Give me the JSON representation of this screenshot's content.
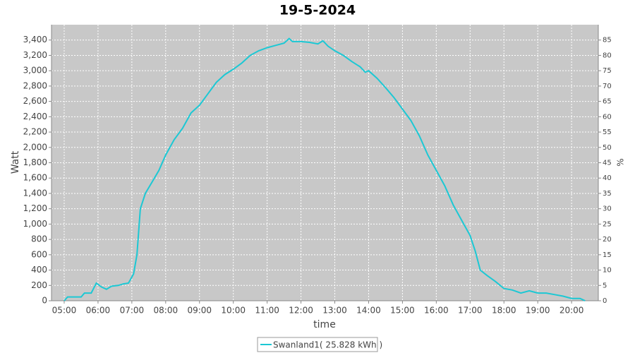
{
  "chart_data": {
    "type": "line",
    "title": "19-5-2024",
    "x_label": "time",
    "y_label": "Watt",
    "y2_label": "%",
    "x": [
      5.0,
      5.1,
      5.5,
      5.6,
      5.8,
      5.95,
      6.1,
      6.25,
      6.4,
      6.6,
      6.75,
      6.9,
      7.05,
      7.15,
      7.25,
      7.4,
      7.6,
      7.8,
      8.0,
      8.25,
      8.5,
      8.75,
      9.0,
      9.25,
      9.5,
      9.75,
      10.0,
      10.25,
      10.5,
      10.75,
      11.0,
      11.25,
      11.5,
      11.65,
      11.75,
      12.0,
      12.25,
      12.5,
      12.65,
      12.8,
      13.0,
      13.25,
      13.5,
      13.75,
      13.9,
      14.0,
      14.25,
      14.5,
      14.75,
      15.0,
      15.25,
      15.5,
      15.75,
      16.0,
      16.25,
      16.5,
      16.75,
      17.0,
      17.15,
      17.3,
      17.5,
      17.75,
      18.0,
      18.25,
      18.5,
      18.75,
      19.0,
      19.25,
      19.5,
      19.75,
      20.0,
      20.25,
      20.4
    ],
    "series": [
      {
        "name": "Swanland1( 25.828 kWh )",
        "color": "#1cc8d4",
        "values": [
          0,
          50,
          50,
          100,
          100,
          230,
          180,
          150,
          190,
          200,
          220,
          230,
          350,
          600,
          1200,
          1400,
          1550,
          1700,
          1900,
          2100,
          2250,
          2450,
          2550,
          2700,
          2850,
          2950,
          3020,
          3100,
          3200,
          3260,
          3300,
          3330,
          3360,
          3420,
          3380,
          3380,
          3370,
          3350,
          3390,
          3320,
          3260,
          3200,
          3120,
          3050,
          2980,
          3000,
          2900,
          2780,
          2650,
          2500,
          2350,
          2150,
          1900,
          1700,
          1500,
          1250,
          1050,
          850,
          650,
          400,
          330,
          250,
          160,
          140,
          100,
          130,
          100,
          100,
          80,
          60,
          30,
          30,
          0
        ]
      }
    ],
    "xlim": [
      4.625,
      20.79
    ],
    "xticks": [
      {
        "value": 5,
        "label": "05:00"
      },
      {
        "value": 6,
        "label": "06:00"
      },
      {
        "value": 7,
        "label": "07:00"
      },
      {
        "value": 8,
        "label": "08:00"
      },
      {
        "value": 9,
        "label": "09:00"
      },
      {
        "value": 10,
        "label": "10:00"
      },
      {
        "value": 11,
        "label": "11:00"
      },
      {
        "value": 12,
        "label": "12:00"
      },
      {
        "value": 13,
        "label": "13:00"
      },
      {
        "value": 14,
        "label": "14:00"
      },
      {
        "value": 15,
        "label": "15:00"
      },
      {
        "value": 16,
        "label": "16:00"
      },
      {
        "value": 17,
        "label": "17:00"
      },
      {
        "value": 18,
        "label": "18:00"
      },
      {
        "value": 19,
        "label": "19:00"
      },
      {
        "value": 20,
        "label": "20:00"
      }
    ],
    "ylim": [
      0,
      3600
    ],
    "yticks": [
      0,
      200,
      400,
      600,
      800,
      {
        "value": 1000,
        "label": "1,000"
      },
      {
        "value": 1200,
        "label": "1,200"
      },
      {
        "value": 1400,
        "label": "1,400"
      },
      {
        "value": 1600,
        "label": "1,600"
      },
      {
        "value": 1800,
        "label": "1,800"
      },
      {
        "value": 2000,
        "label": "2,000"
      },
      {
        "value": 2200,
        "label": "2,200"
      },
      {
        "value": 2400,
        "label": "2,400"
      },
      {
        "value": 2600,
        "label": "2,600"
      },
      {
        "value": 2800,
        "label": "2,800"
      },
      {
        "value": 3000,
        "label": "3,000"
      },
      {
        "value": 3200,
        "label": "3,200"
      },
      {
        "value": 3400,
        "label": "3,400"
      }
    ],
    "y2lim": [
      0,
      90
    ],
    "y2ticks": [
      0,
      5,
      10,
      15,
      20,
      25,
      30,
      35,
      40,
      45,
      50,
      55,
      60,
      65,
      70,
      75,
      80,
      85
    ],
    "grid": true
  }
}
